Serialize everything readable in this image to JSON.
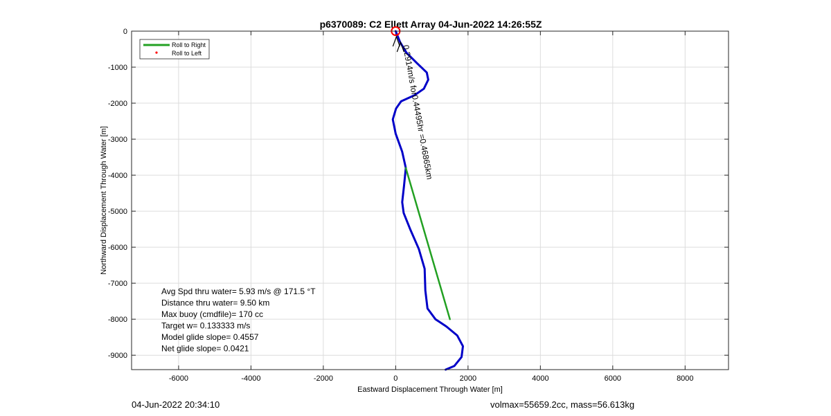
{
  "chart_data": {
    "type": "line",
    "title": "p6370089: C2 Ellett Array 04-Jun-2022 14:26:55Z",
    "xlabel": "Eastward Displacement Through Water [m]",
    "ylabel": "Northward Displacement Through Water [m]",
    "xlim": [
      -7300,
      9200
    ],
    "ylim": [
      -9400,
      0
    ],
    "xticks": [
      -6000,
      -4000,
      -2000,
      0,
      2000,
      4000,
      6000,
      8000
    ],
    "yticks": [
      0,
      -1000,
      -2000,
      -3000,
      -4000,
      -5000,
      -6000,
      -7000,
      -8000,
      -9000
    ],
    "grid": true,
    "legend_position": "top-left",
    "legend": [
      {
        "label": "Roll to Right",
        "color": "#22a022",
        "marker": "line"
      },
      {
        "label": "Roll to Left",
        "color": "#ff0000",
        "marker": "dot"
      }
    ],
    "series": [
      {
        "color": "#0000c8",
        "x": [
          0,
          120,
          300,
          600,
          860,
          900,
          780,
          520,
          150,
          10,
          -80,
          0,
          180,
          280,
          230,
          180,
          220,
          400,
          640,
          800,
          820,
          880,
          1100,
          1400,
          1700,
          1860,
          1820,
          1620,
          1380
        ],
        "y": [
          0,
          -300,
          -600,
          -900,
          -1150,
          -1350,
          -1600,
          -1780,
          -1950,
          -2150,
          -2450,
          -2850,
          -3350,
          -3800,
          -4300,
          -4750,
          -5050,
          -5500,
          -6050,
          -6600,
          -7200,
          -7700,
          -8000,
          -8200,
          -8450,
          -8750,
          -9050,
          -9300,
          -9400
        ]
      },
      {
        "color": "#22a022",
        "x": [
          280,
          1500
        ],
        "y": [
          -3800,
          -8000
        ]
      }
    ],
    "start_marker": {
      "x": 0,
      "y": 0,
      "color": "#ff0000"
    },
    "annotation": {
      "text": "0.2914m/s for0.44495hr =0.46865km",
      "x": 200,
      "y": -400,
      "rotation_deg": 79.8
    },
    "stats": [
      "Avg Spd thru water=  5.93 m/s @ 171.5 °T",
      "Distance thru water=  9.50 km",
      "Max buoy (cmdfile)= 170 cc",
      "Target w= 0.133333 m/s",
      "Model glide slope= 0.4557",
      "Net glide slope= 0.0421"
    ]
  },
  "footer": {
    "left": "04-Jun-2022 20:34:10",
    "right": "volmax=55659.2cc, mass=56.613kg"
  }
}
